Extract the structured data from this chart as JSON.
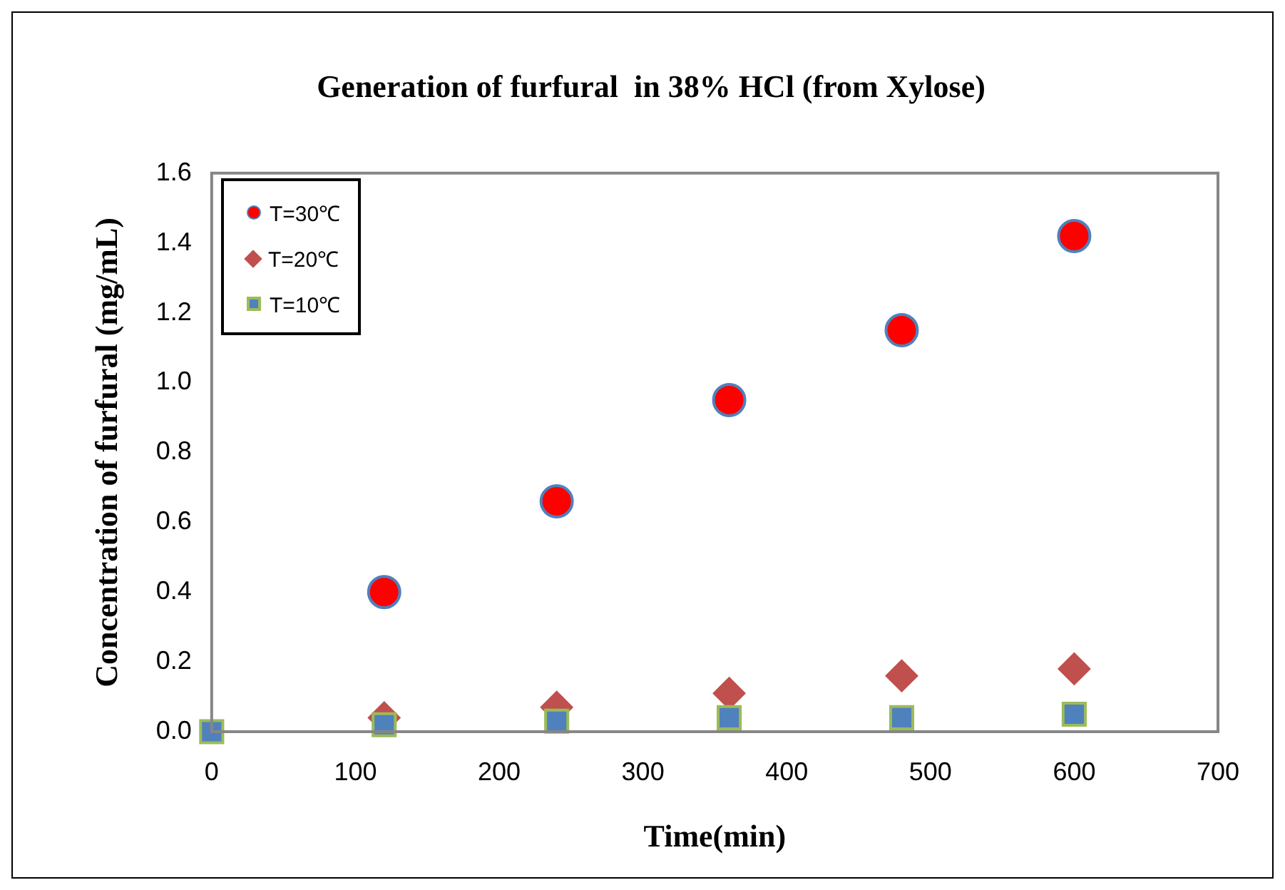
{
  "chart_data": {
    "type": "scatter",
    "title": "Generation of furfural  in 38% HCl (from Xylose)",
    "xlabel": "Time(min)",
    "ylabel": "Concentration of furfural (mg/mL)",
    "x": [
      0,
      120,
      240,
      360,
      480,
      600
    ],
    "series": [
      {
        "name": "T=30℃",
        "color": "#ff0000",
        "marker": "circle",
        "values": [
          null,
          0.4,
          0.66,
          0.95,
          1.15,
          1.42
        ]
      },
      {
        "name": "T=20℃",
        "color": "#c0504d",
        "marker": "diamond",
        "values": [
          null,
          0.04,
          0.07,
          0.11,
          0.16,
          0.18
        ]
      },
      {
        "name": "T=10℃",
        "color": "#4f81bd",
        "marker": "square",
        "values": [
          0.0,
          0.02,
          0.03,
          0.04,
          0.04,
          0.05
        ]
      }
    ],
    "xlim": [
      0,
      700
    ],
    "xticks": [
      0,
      100,
      200,
      300,
      400,
      500,
      600,
      700
    ],
    "ylim": [
      0,
      1.6
    ],
    "yticks": [
      {
        "value": 0,
        "label": "0.0"
      },
      0.2,
      0.4,
      0.6,
      0.8,
      {
        "value": 1,
        "label": "1.0"
      },
      1.2,
      1.4,
      1.6
    ],
    "grid": false,
    "legend": "top left"
  }
}
